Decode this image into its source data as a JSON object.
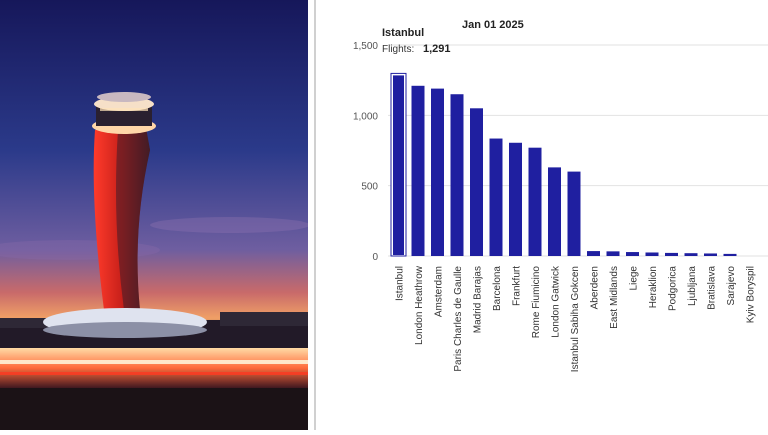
{
  "photo": {
    "subject": "airport control tower at dusk"
  },
  "tooltip": {
    "date": "Jan 01 2025",
    "name": "Istanbul",
    "label": "Flights:",
    "value": "1,291"
  },
  "chart_data": {
    "type": "bar",
    "title": "",
    "xlabel": "",
    "ylabel": "",
    "ylim": [
      0,
      1500
    ],
    "yticks": [
      0,
      500,
      1000,
      1500
    ],
    "ytick_labels": [
      "0",
      "500",
      "1,000",
      "1,500"
    ],
    "grid": true,
    "categories": [
      "Istanbul",
      "London Heathrow",
      "Amsterdam",
      "Paris Charles de Gaulle",
      "Madrid Barajas",
      "Barcelona",
      "Frankfurt",
      "Rome Fiumicino",
      "London Gatwick",
      "Istanbul Sabiha Gokcen",
      "Aberdeen",
      "East Midlands",
      "Liege",
      "Heraklion",
      "Podgorica",
      "Ljubljana",
      "Bratislava",
      "Sarajevo",
      "Kyiv Boryspil"
    ],
    "values": [
      1291,
      1210,
      1190,
      1150,
      1050,
      835,
      805,
      770,
      630,
      600,
      35,
      33,
      28,
      25,
      22,
      20,
      18,
      15,
      0
    ],
    "bar_color": "#1f1fa0",
    "highlight_index": 0
  }
}
